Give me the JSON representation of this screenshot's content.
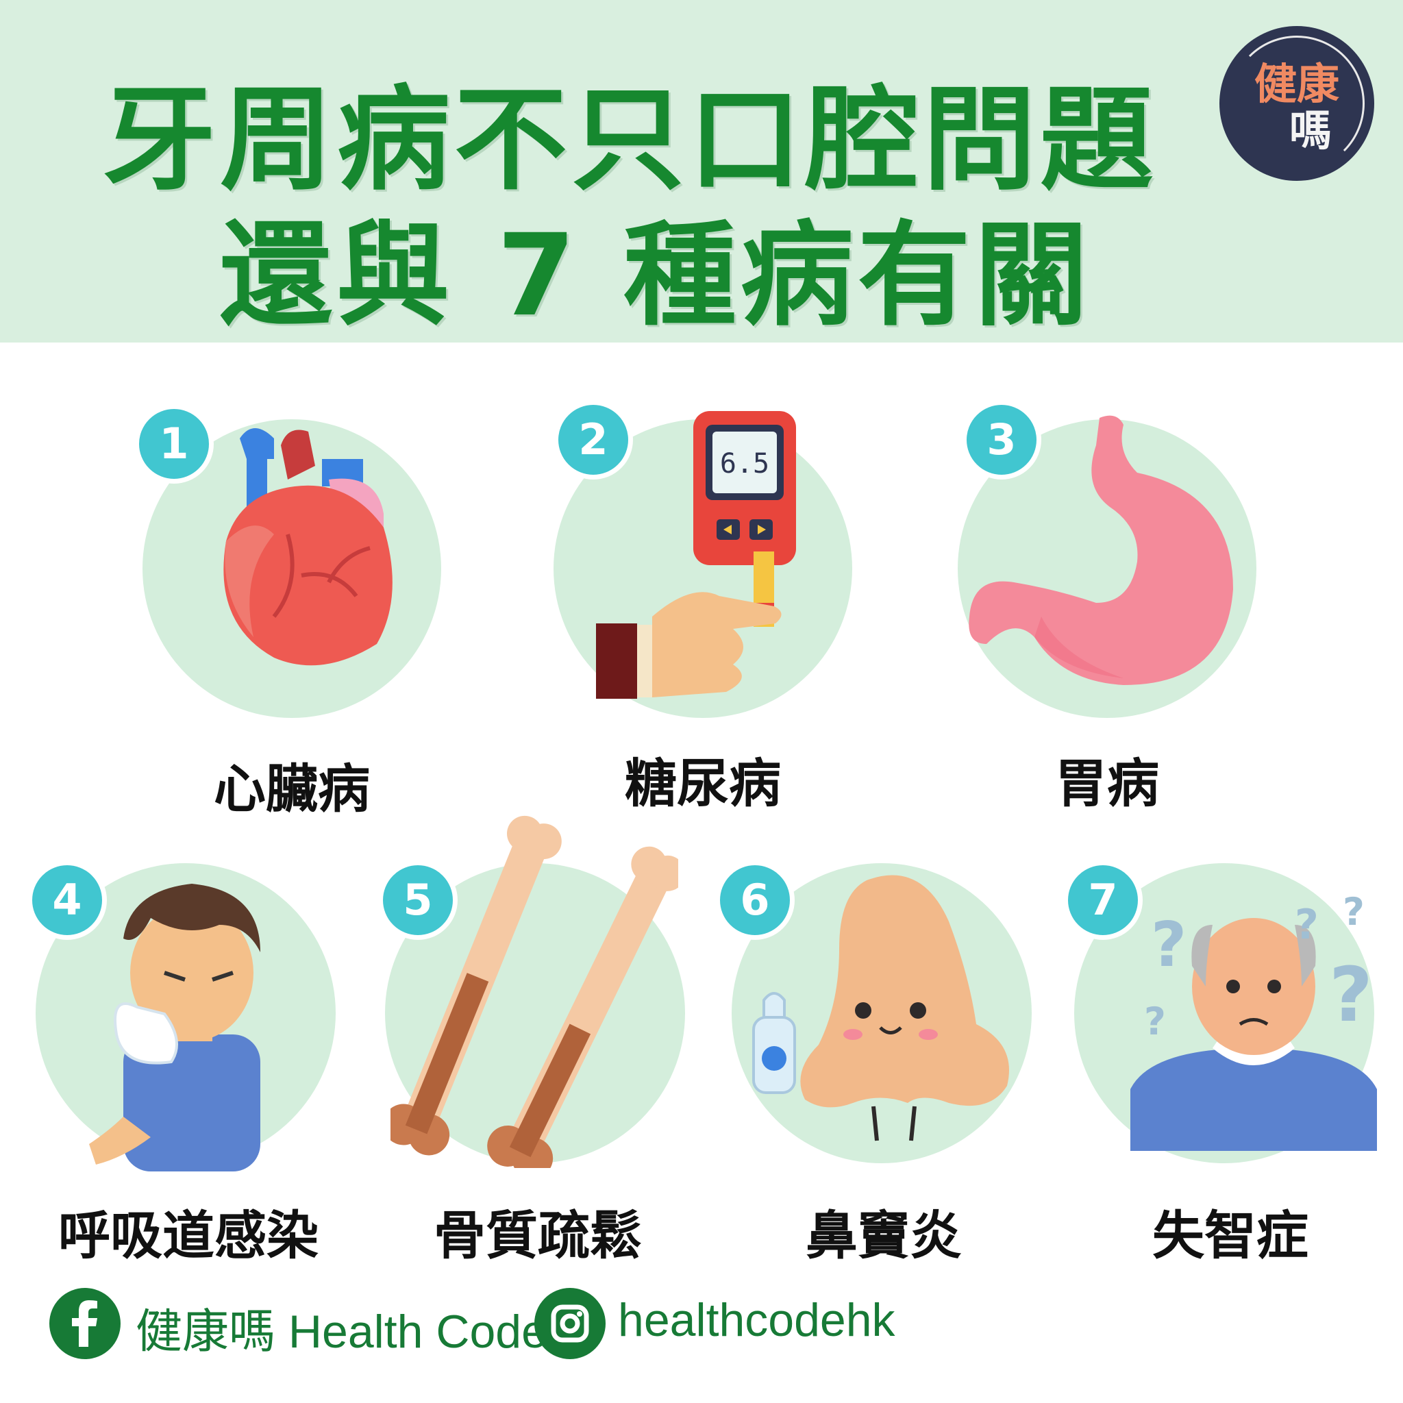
{
  "title": {
    "line1": "牙周病不只口腔問題",
    "line2": "還與 7 種病有關"
  },
  "logo": {
    "line1": "健康",
    "line2": "嗎"
  },
  "diseases": [
    {
      "number": "1",
      "label": "心臟病",
      "icon": "heart-icon"
    },
    {
      "number": "2",
      "label": "糖尿病",
      "icon": "glucose-meter-icon",
      "reading": "6.5"
    },
    {
      "number": "3",
      "label": "胃病",
      "icon": "stomach-icon"
    },
    {
      "number": "4",
      "label": "呼吸道感染",
      "icon": "sneezing-man-icon"
    },
    {
      "number": "5",
      "label": "骨質疏鬆",
      "icon": "bones-icon"
    },
    {
      "number": "6",
      "label": "鼻竇炎",
      "icon": "nose-icon"
    },
    {
      "number": "7",
      "label": "失智症",
      "icon": "confused-elder-icon"
    }
  ],
  "footer": {
    "facebook": "健康嗎 Health Code",
    "instagram": "healthcodehk"
  },
  "colors": {
    "header_bg": "#d9efdf",
    "title_green": "#16882f",
    "badge_teal": "#41c6d0",
    "disc_green": "#d4eedc",
    "logo_navy": "#2e3551"
  }
}
